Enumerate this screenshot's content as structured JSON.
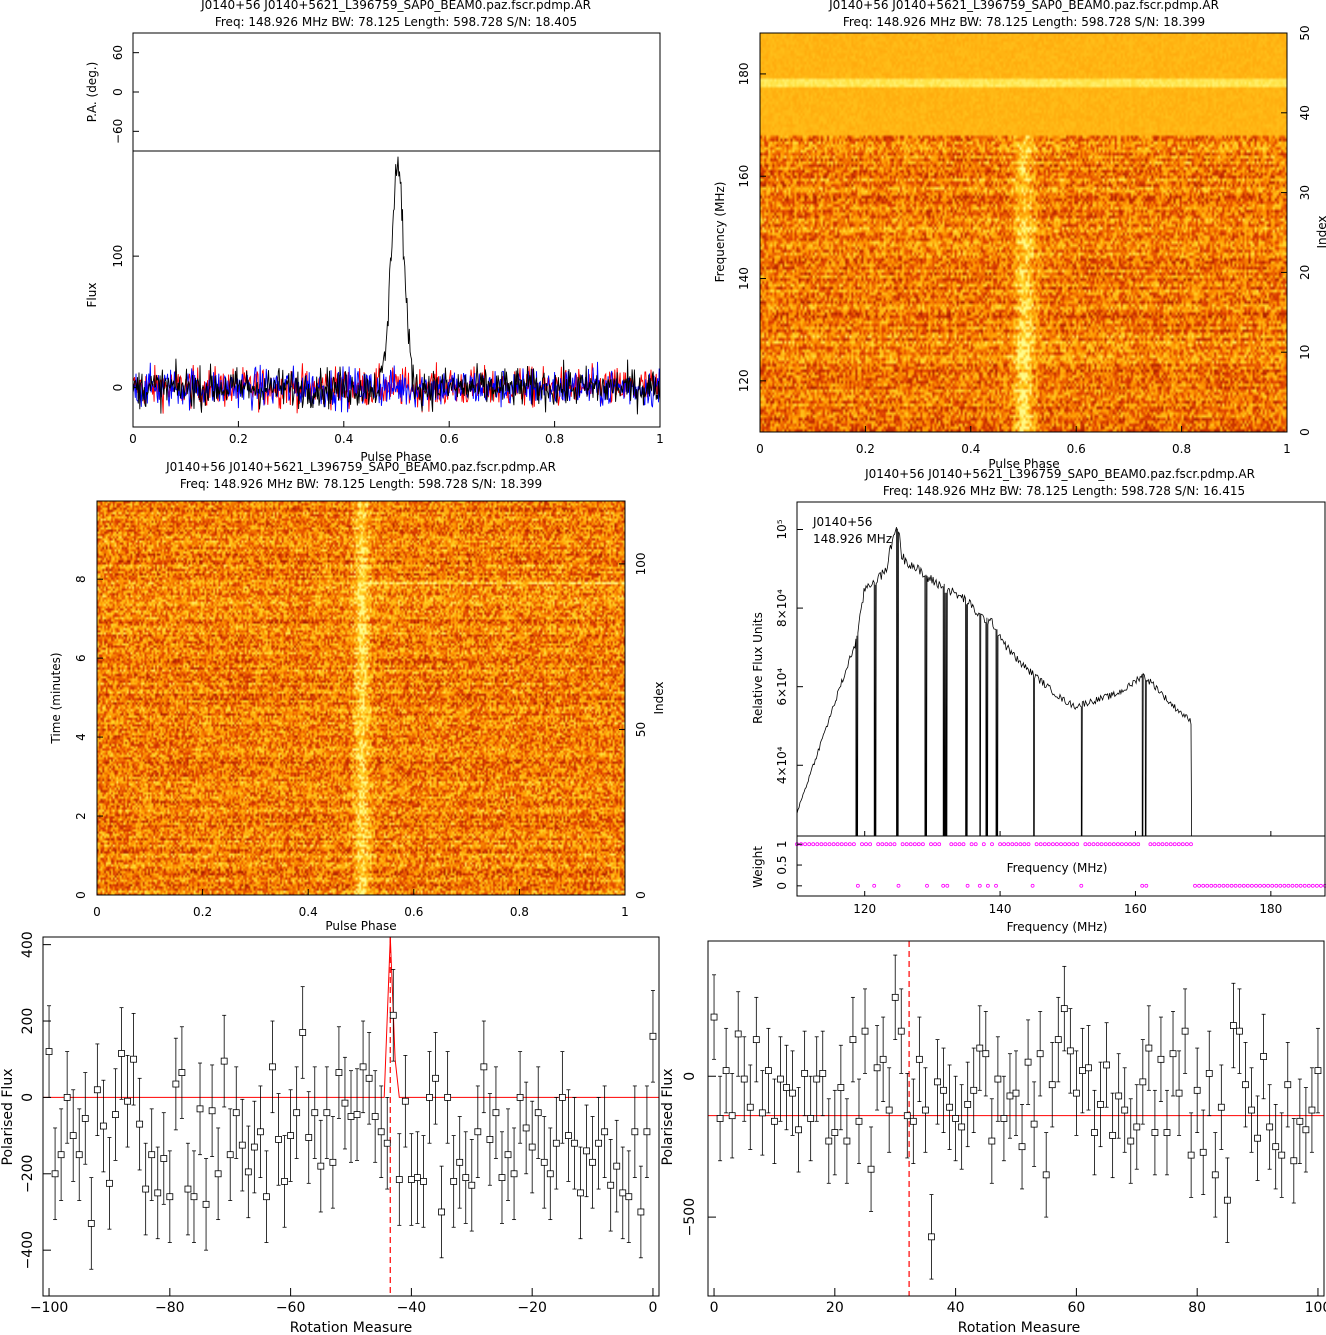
{
  "panels": {
    "profile": {
      "title": "J0140+56  J0140+5621_L396759_SAP0_BEAM0.paz.fscr.pdmp.AR",
      "subtitle": "Freq: 148.926 MHz BW: 78.125 Length: 598.728 S/N: 18.405"
    },
    "freq_phase": {
      "title": "J0140+56  J0140+5621_L396759_SAP0_BEAM0.paz.fscr.pdmp.AR",
      "subtitle": "Freq: 148.926 MHz BW: 78.125 Length: 598.728 S/N: 18.399"
    },
    "time_phase": {
      "title": "J0140+56  J0140+5621_L396759_SAP0_BEAM0.paz.fscr.pdmp.AR",
      "subtitle": "Freq: 148.926 MHz BW: 78.125 Length: 598.728 S/N: 18.399"
    },
    "bandpass": {
      "title": "J0140+56  J0140+5621_L396759_SAP0_BEAM0.paz.fscr.pdmp.AR",
      "subtitle": "Freq: 148.926 MHz BW: 78.125 Length: 598.728 S/N: 16.415",
      "annot_source": "J0140+56",
      "annot_freq": "148.926 MHz"
    },
    "rm_left": {},
    "rm_right": {}
  },
  "chart_data": [
    {
      "type": "line",
      "panel": "profile",
      "xlabel": "Pulse Phase",
      "ylabel_top": "P.A. (deg.)",
      "ylabel": "Flux",
      "xlim": [
        0,
        1
      ],
      "ylim": [
        -30,
        180
      ],
      "ylim_top": [
        -90,
        90
      ],
      "xticks": [
        0,
        0.2,
        0.4,
        0.6,
        0.8,
        1
      ],
      "xtick_labels": [
        "0",
        "0.2",
        "0.4",
        "0.6",
        "0.8",
        "1"
      ],
      "yticks": [
        0,
        100
      ],
      "yticks_top": [
        -60,
        0,
        60
      ],
      "series": [
        {
          "color": "#ff0000",
          "noise_amp": 18,
          "peak": 0
        },
        {
          "color": "#0000ff",
          "noise_amp": 18,
          "peak": 0
        },
        {
          "color": "#000000",
          "noise_amp": 18,
          "peak": 170,
          "peak_center": 0.502,
          "peak_width": 0.012
        }
      ]
    },
    {
      "type": "heatmap",
      "panel": "freq_phase",
      "xlabel": "Pulse Phase",
      "ylabel": "Frequency (MHz)",
      "ylabel_right": "Index",
      "xlim": [
        0,
        1
      ],
      "ylim": [
        110,
        188
      ],
      "ylim_right": [
        0,
        50
      ],
      "xticks": [
        0,
        0.2,
        0.4,
        0.6,
        0.8,
        1
      ],
      "xtick_labels": [
        "0",
        "0.2",
        "0.4",
        "0.6",
        "0.8",
        "1"
      ],
      "yticks": [
        120,
        140,
        160,
        180
      ],
      "yticks_right": [
        0,
        10,
        20,
        30,
        40,
        50
      ],
      "pulse_phase": 0.5,
      "flat_above": 168
    },
    {
      "type": "heatmap",
      "panel": "time_phase",
      "xlabel": "Pulse Phase",
      "ylabel": "Time (minutes)",
      "ylabel_right": "Index",
      "xlim": [
        0,
        1
      ],
      "ylim": [
        0,
        9.98
      ],
      "ylim_right": [
        0,
        119
      ],
      "xticks": [
        0,
        0.2,
        0.4,
        0.6,
        0.8,
        1
      ],
      "xtick_labels": [
        "0",
        "0.2",
        "0.4",
        "0.6",
        "0.8",
        "1"
      ],
      "yticks": [
        0,
        2,
        4,
        6,
        8
      ],
      "yticks_right": [
        0,
        50,
        100
      ],
      "pulse_phase": 0.5
    },
    {
      "type": "line",
      "panel": "bandpass",
      "xlabel": "Frequency (MHz)",
      "ylabel": "Relative Flux Units",
      "ylabel_bottom": "Weight",
      "xlim": [
        110,
        188
      ],
      "ylim": [
        22000,
        107000
      ],
      "xticks": [
        120,
        140,
        160,
        180
      ],
      "yticks": [
        40000,
        60000,
        80000,
        100000
      ],
      "ytick_labels": [
        "4×10⁴",
        "6×10⁴",
        "8×10⁴",
        "10⁵"
      ],
      "weight_ticks": [
        0,
        0.5,
        1
      ],
      "weight_tick_labels": [
        "0",
        "0.5",
        "1"
      ],
      "x": [
        110,
        112,
        114,
        116,
        118,
        118.8,
        120,
        121.5,
        123,
        124.8,
        125.5,
        127,
        129,
        131,
        133,
        135,
        137,
        139,
        141,
        143,
        145,
        147,
        149,
        151,
        153,
        155,
        157,
        159,
        161,
        163,
        165,
        167,
        168.3
      ],
      "values": [
        28000,
        38000,
        48000,
        58000,
        68000,
        72000,
        85000,
        87000,
        89000,
        102000,
        93000,
        91000,
        88000,
        86000,
        84000,
        82000,
        78000,
        76000,
        70000,
        66000,
        63000,
        60000,
        57000,
        55000,
        56000,
        57000,
        58000,
        60000,
        63000,
        60000,
        56000,
        53000,
        51000
      ],
      "flagged_channels": [
        118.8,
        121.5,
        124.8,
        129,
        131.7,
        132,
        135,
        137,
        138,
        139.5,
        145,
        152,
        161,
        161.5
      ],
      "weight_zero_above": 168.5
    },
    {
      "type": "scatter",
      "panel": "rm_left",
      "xlabel": "Rotation Measure",
      "ylabel": "Polarised Flux",
      "xlim": [
        -101,
        1
      ],
      "ylim": [
        -520,
        420
      ],
      "xticks": [
        -100,
        -80,
        -60,
        -40,
        -20,
        0
      ],
      "yticks": [
        -400,
        -200,
        0,
        200,
        400
      ],
      "marked_rm": -43.5,
      "baseline": 0,
      "x": [
        -100,
        -99,
        -98,
        -97,
        -96,
        -95,
        -94,
        -93,
        -92,
        -91,
        -90,
        -89,
        -88,
        -87,
        -86,
        -85,
        -84,
        -83,
        -82,
        -81,
        -80,
        -79,
        -78,
        -77,
        -76,
        -75,
        -74,
        -73,
        -72,
        -71,
        -70,
        -69,
        -68,
        -67,
        -66,
        -65,
        -64,
        -63,
        -62,
        -61,
        -60,
        -59,
        -58,
        -57,
        -56,
        -55,
        -54,
        -53,
        -52,
        -51,
        -50,
        -49,
        -48,
        -47,
        -46,
        -45,
        -44,
        -43,
        -42,
        -41,
        -40,
        -39,
        -38,
        -37,
        -36,
        -35,
        -34,
        -33,
        -32,
        -31,
        -30,
        -29,
        -28,
        -27,
        -26,
        -25,
        -24,
        -23,
        -22,
        -21,
        -20,
        -19,
        -18,
        -17,
        -16,
        -15,
        -14,
        -13,
        -12,
        -11,
        -10,
        -9,
        -8,
        -7,
        -6,
        -5,
        -4,
        -3,
        -2,
        -1,
        0
      ],
      "values": [
        120,
        -200,
        -150,
        0,
        -100,
        -150,
        -55,
        -330,
        20,
        -75,
        -225,
        -45,
        115,
        -10,
        100,
        -70,
        -240,
        -150,
        -250,
        -160,
        -260,
        35,
        65,
        -240,
        -260,
        -30,
        -280,
        -35,
        -200,
        95,
        -150,
        -40,
        -125,
        -195,
        -130,
        -90,
        -260,
        80,
        -110,
        -220,
        -100,
        -40,
        170,
        -105,
        -40,
        -180,
        -40,
        -170,
        65,
        -15,
        -50,
        -45,
        80,
        50,
        -50,
        -90,
        -120,
        215,
        -215,
        -10,
        -215,
        -210,
        -220,
        0,
        50,
        -300,
        0,
        -220,
        -170,
        -210,
        -230,
        -90,
        80,
        -110,
        -40,
        -210,
        -150,
        -200,
        0,
        -80,
        -130,
        -40,
        -170,
        -200,
        -120,
        0,
        -100,
        -120,
        -250,
        -140,
        -170,
        -120,
        -90,
        -230,
        -180,
        -250,
        -260,
        -90,
        -300,
        -90,
        160
      ],
      "errors": [
        120,
        120,
        120,
        120,
        120,
        120,
        120,
        120,
        120,
        120,
        120,
        120,
        120,
        120,
        120,
        120,
        120,
        120,
        120,
        120,
        120,
        120,
        120,
        120,
        120,
        120,
        120,
        120,
        120,
        120,
        120,
        120,
        120,
        120,
        120,
        120,
        120,
        120,
        120,
        120,
        120,
        120,
        120,
        120,
        120,
        120,
        120,
        120,
        120,
        120,
        120,
        120,
        120,
        120,
        120,
        120,
        120,
        120,
        120,
        120,
        120,
        120,
        120,
        120,
        120,
        120,
        120,
        120,
        120,
        120,
        120,
        120,
        120,
        120,
        120,
        120,
        120,
        120,
        120,
        120,
        120,
        120,
        120,
        120,
        120,
        120,
        120,
        120,
        120,
        120,
        120,
        120,
        120,
        120,
        120,
        120,
        120,
        120,
        120,
        120,
        120
      ],
      "fit_curve": {
        "x": [
          -101,
          -44.5,
          -43.5,
          -42.7,
          -42.0,
          1
        ],
        "y": [
          0,
          0,
          420,
          100,
          0,
          0
        ]
      }
    },
    {
      "type": "scatter",
      "panel": "rm_right",
      "xlabel": "Rotation Measure",
      "ylabel": "Polarised Flux",
      "xlim": [
        -1,
        101
      ],
      "ylim": [
        -780,
        480
      ],
      "xticks": [
        0,
        20,
        40,
        60,
        80,
        100
      ],
      "yticks": [
        -500,
        0
      ],
      "marked_rm": 32.3,
      "baseline": -140,
      "x": [
        0,
        1,
        2,
        3,
        4,
        5,
        6,
        7,
        8,
        9,
        10,
        11,
        12,
        13,
        14,
        15,
        16,
        17,
        18,
        19,
        20,
        21,
        22,
        23,
        24,
        25,
        26,
        27,
        28,
        29,
        30,
        31,
        32,
        33,
        34,
        35,
        36,
        37,
        38,
        39,
        40,
        41,
        42,
        43,
        44,
        45,
        46,
        47,
        48,
        49,
        50,
        51,
        52,
        53,
        54,
        55,
        56,
        57,
        58,
        59,
        60,
        61,
        62,
        63,
        64,
        65,
        66,
        67,
        68,
        69,
        70,
        71,
        72,
        73,
        74,
        75,
        76,
        77,
        78,
        79,
        80,
        81,
        82,
        83,
        84,
        85,
        86,
        87,
        88,
        89,
        90,
        91,
        92,
        93,
        94,
        95,
        96,
        97,
        98,
        99,
        100
      ],
      "values": [
        210,
        -150,
        20,
        -140,
        150,
        -10,
        -110,
        130,
        -130,
        20,
        -160,
        -10,
        -40,
        -60,
        -190,
        10,
        -150,
        -10,
        10,
        -230,
        -200,
        -40,
        -230,
        130,
        -160,
        160,
        -330,
        30,
        60,
        -120,
        280,
        160,
        -140,
        -160,
        60,
        -120,
        -570,
        -20,
        -50,
        -110,
        -150,
        -180,
        -100,
        -50,
        100,
        80,
        -230,
        -10,
        -150,
        -70,
        -60,
        -250,
        50,
        -170,
        80,
        -350,
        -30,
        130,
        240,
        90,
        -60,
        20,
        30,
        -200,
        -100,
        40,
        -210,
        -70,
        -120,
        -230,
        -180,
        -20,
        100,
        -200,
        60,
        -200,
        80,
        -60,
        160,
        -280,
        -50,
        -270,
        10,
        -350,
        -110,
        -440,
        180,
        160,
        -30,
        -120,
        -220,
        70,
        -180,
        -250,
        -280,
        -30,
        -300,
        -160,
        -190,
        -120,
        20
      ],
      "errors": [
        150,
        150,
        150,
        150,
        150,
        150,
        150,
        150,
        150,
        150,
        150,
        150,
        150,
        150,
        150,
        150,
        150,
        150,
        150,
        150,
        150,
        150,
        150,
        150,
        150,
        150,
        150,
        150,
        150,
        150,
        150,
        150,
        150,
        150,
        150,
        150,
        150,
        150,
        150,
        150,
        150,
        150,
        150,
        150,
        150,
        150,
        150,
        150,
        150,
        150,
        150,
        150,
        150,
        150,
        150,
        150,
        150,
        150,
        150,
        150,
        150,
        150,
        150,
        150,
        150,
        150,
        150,
        150,
        150,
        150,
        150,
        150,
        150,
        150,
        150,
        150,
        150,
        150,
        150,
        150,
        150,
        150,
        150,
        150,
        150,
        150,
        150,
        150,
        150,
        150,
        150,
        150,
        150,
        150,
        150,
        150,
        150,
        150,
        150,
        150,
        150
      ]
    }
  ],
  "colors": {
    "axes": "#000000",
    "fit_line": "#ff0000",
    "weights": "#ff00ff",
    "heat_low": "#8b0000",
    "heat_mid": "#ff8c00",
    "heat_high": "#fffc80"
  }
}
